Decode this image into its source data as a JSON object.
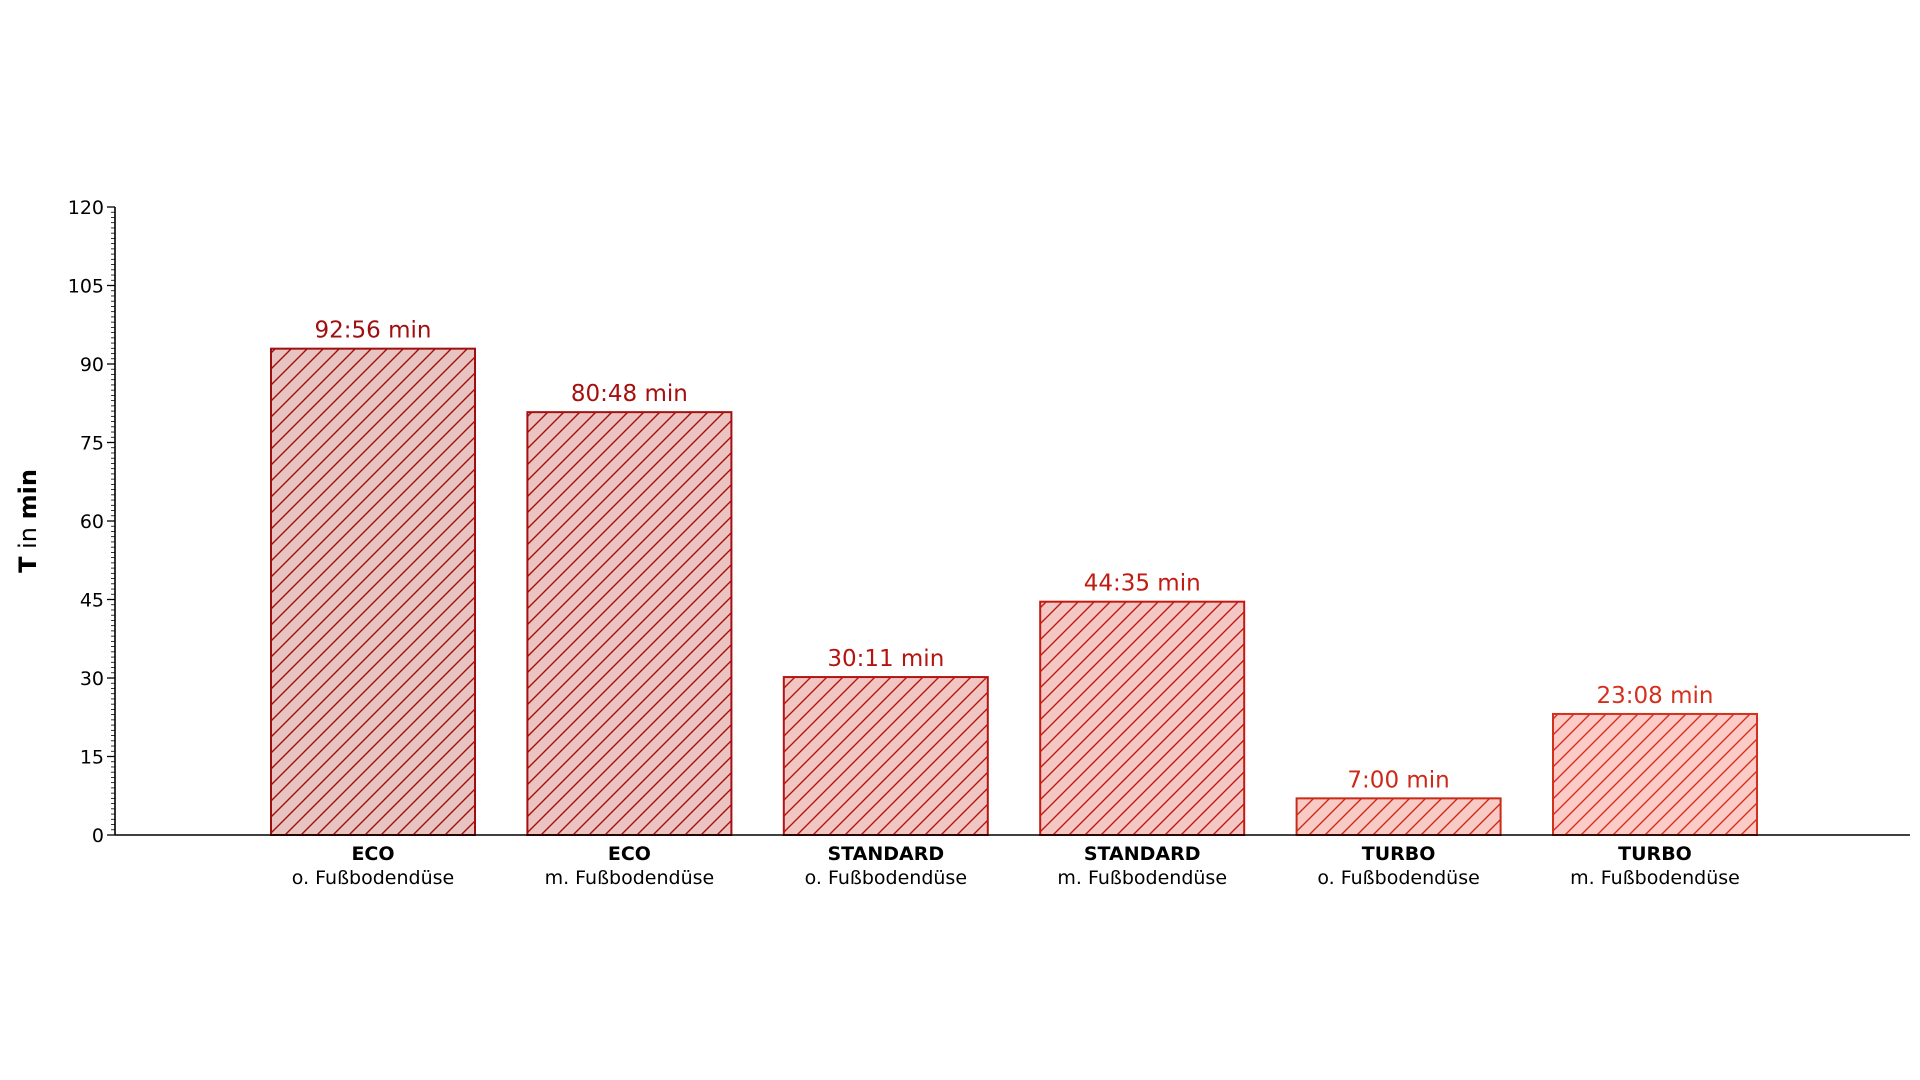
{
  "chart_data": {
    "type": "bar",
    "title": "",
    "xlabel": "",
    "ylabel": {
      "prefix": "T",
      "middle": " in ",
      "unit": "min"
    },
    "ylim": [
      0,
      120
    ],
    "yticks": [
      0,
      15,
      30,
      45,
      60,
      75,
      90,
      105,
      120
    ],
    "yminor_step": 1,
    "grid": false,
    "legend": "none",
    "hatch": "diagonal",
    "categories": [
      {
        "main": "ECO",
        "sub": "o. Fußbodendüse"
      },
      {
        "main": "ECO",
        "sub": "m. Fußbodendüse"
      },
      {
        "main": "STANDARD",
        "sub": "o. Fußbodendüse"
      },
      {
        "main": "STANDARD",
        "sub": "m. Fußbodendüse"
      },
      {
        "main": "TURBO",
        "sub": "o. Fußbodendüse"
      },
      {
        "main": "TURBO",
        "sub": "m. Fußbodendüse"
      }
    ],
    "values": [
      92.93,
      80.8,
      30.18,
      44.58,
      7.0,
      23.13
    ],
    "value_labels": [
      "92:56 min",
      "80:48 min",
      "30:11 min",
      "44:35 min",
      "7:00 min",
      "23:08 min"
    ],
    "colors": {
      "edge": [
        "#a00f0f",
        "#a50f0f",
        "#b51510",
        "#c21a12",
        "#cc2a17",
        "#d4301c"
      ],
      "fill": [
        "#e8c4c0",
        "#ebc4c1",
        "#f0c6c2",
        "#f3c7c3",
        "#f8cac6",
        "#fbcbc7"
      ]
    }
  }
}
